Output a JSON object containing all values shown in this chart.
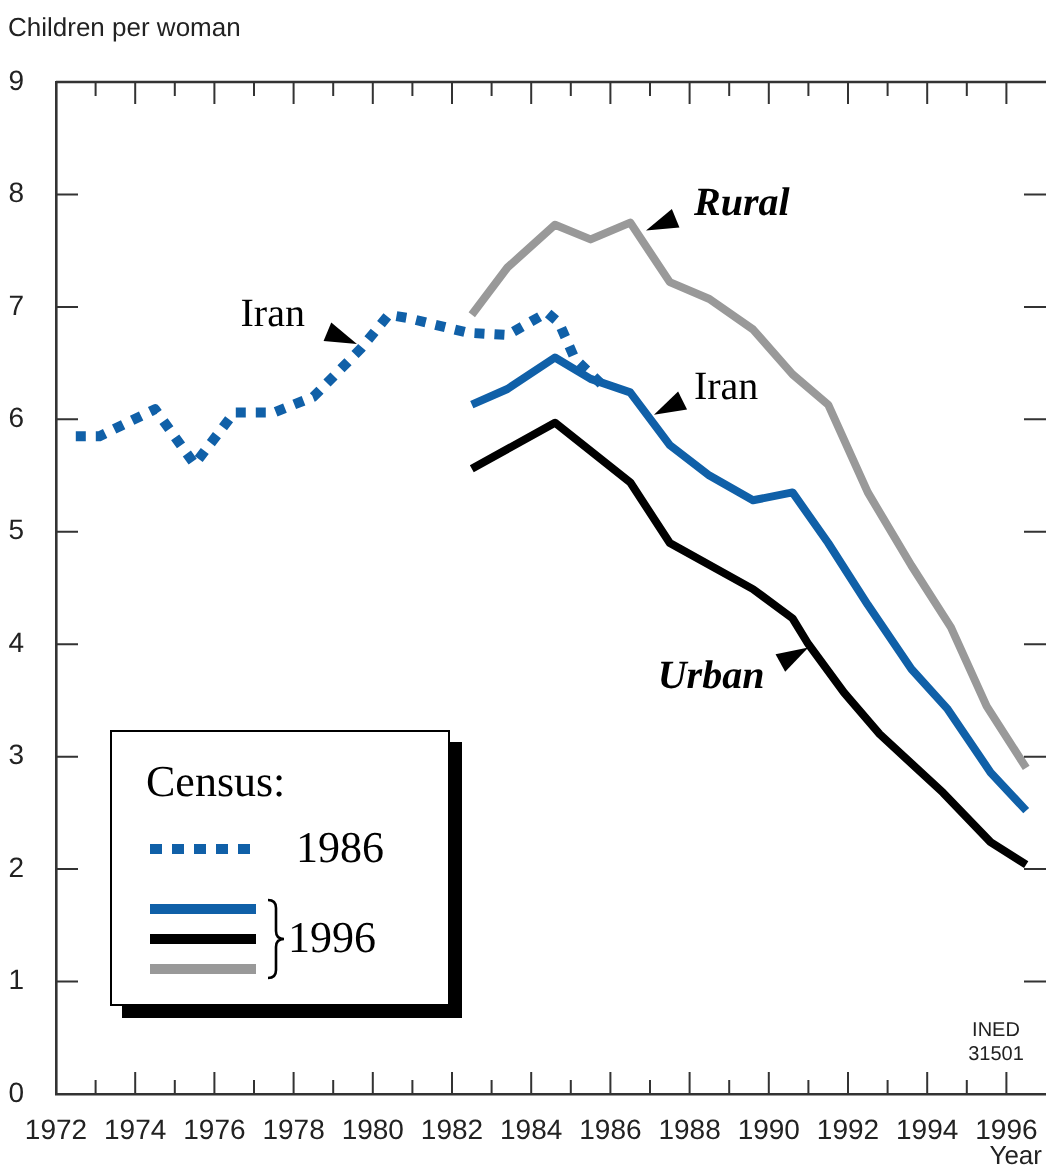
{
  "chart_data": {
    "type": "line",
    "xlabel": "Year",
    "ylabel": "Children per woman",
    "legend": "bottom left",
    "legend_title": "Census:",
    "marker": "none",
    "grid": false,
    "xlim": [
      1972,
      1997
    ],
    "ylim": [
      0,
      9
    ],
    "xticks": [
      1972,
      {
        "value": 1973,
        "label": null
      },
      1974,
      {
        "value": 1975,
        "label": null
      },
      1976,
      {
        "value": 1977,
        "label": null
      },
      1978,
      {
        "value": 1979,
        "label": null
      },
      1980,
      {
        "value": 1981,
        "label": null
      },
      1982,
      {
        "value": 1983,
        "label": null
      },
      1984,
      {
        "value": 1985,
        "label": null
      },
      1986,
      {
        "value": 1987,
        "label": null
      },
      1988,
      {
        "value": 1989,
        "label": null
      },
      1990,
      {
        "value": 1991,
        "label": null
      },
      1992,
      {
        "value": 1993,
        "label": null
      },
      1994,
      {
        "value": 1995,
        "label": null
      },
      1996
    ],
    "yticks": [
      0,
      1,
      2,
      3,
      4,
      5,
      6,
      7,
      8,
      9
    ],
    "series": [
      {
        "name": "1986",
        "color": "#1060a8",
        "line_style": "dotted",
        "x": [
          1972.5,
          1973.1,
          1974.5,
          1975.5,
          1976.5,
          1977.5,
          1978.5,
          1979.7,
          1980.4,
          1980.9,
          1982.4,
          1983.4,
          1984.4,
          1984.7,
          1985.1,
          1985.9
        ],
        "values": [
          5.85,
          5.85,
          6.09,
          5.6,
          6.06,
          6.06,
          6.2,
          6.63,
          6.93,
          6.9,
          6.77,
          6.75,
          6.95,
          6.86,
          6.54,
          6.27
        ]
      },
      {
        "name": null,
        "color": "#1060a8",
        "line_style": "solid",
        "x": [
          1982.5,
          1983.4,
          1984.6,
          1985.5,
          1986.5,
          1987.5,
          1988.5,
          1989.6,
          1990.6,
          1991.5,
          1992.5,
          1993.6,
          1994.5,
          1995.6,
          1996.5
        ],
        "values": [
          6.13,
          6.27,
          6.55,
          6.36,
          6.24,
          5.77,
          5.5,
          5.28,
          5.35,
          4.9,
          4.35,
          3.78,
          3.43,
          2.86,
          2.52
        ]
      },
      {
        "name": "1996",
        "color": "#000000",
        "line_style": "solid",
        "x": [
          1982.5,
          1984.6,
          1986.5,
          1987.5,
          1989.6,
          1990.6,
          1991.0,
          1991.9,
          1992.8,
          1994.4,
          1995.6,
          1996.5
        ],
        "values": [
          5.56,
          5.97,
          5.44,
          4.9,
          4.49,
          4.23,
          4.0,
          3.57,
          3.2,
          2.68,
          2.24,
          2.04
        ]
      },
      {
        "name": null,
        "color": "#999999",
        "line_style": "solid",
        "x": [
          1982.5,
          1983.4,
          1984.6,
          1985.5,
          1986.5,
          1987.5,
          1988.5,
          1989.6,
          1990.6,
          1991.5,
          1992.5,
          1993.6,
          1994.6,
          1995.5,
          1996.5
        ],
        "values": [
          6.93,
          7.35,
          7.73,
          7.6,
          7.75,
          7.22,
          7.07,
          6.8,
          6.4,
          6.13,
          5.35,
          4.7,
          4.15,
          3.45,
          2.9
        ]
      }
    ],
    "annotations": [
      {
        "text": "Iran",
        "x": 1979.6,
        "y": 6.67
      },
      {
        "text": "Rural",
        "x": 1986.9,
        "y": 7.68
      },
      {
        "text": "Iran",
        "x": 1987.1,
        "y": 6.04
      },
      {
        "text": "Urban",
        "x": 1991.0,
        "y": 3.97
      },
      "INED 31501"
    ]
  }
}
